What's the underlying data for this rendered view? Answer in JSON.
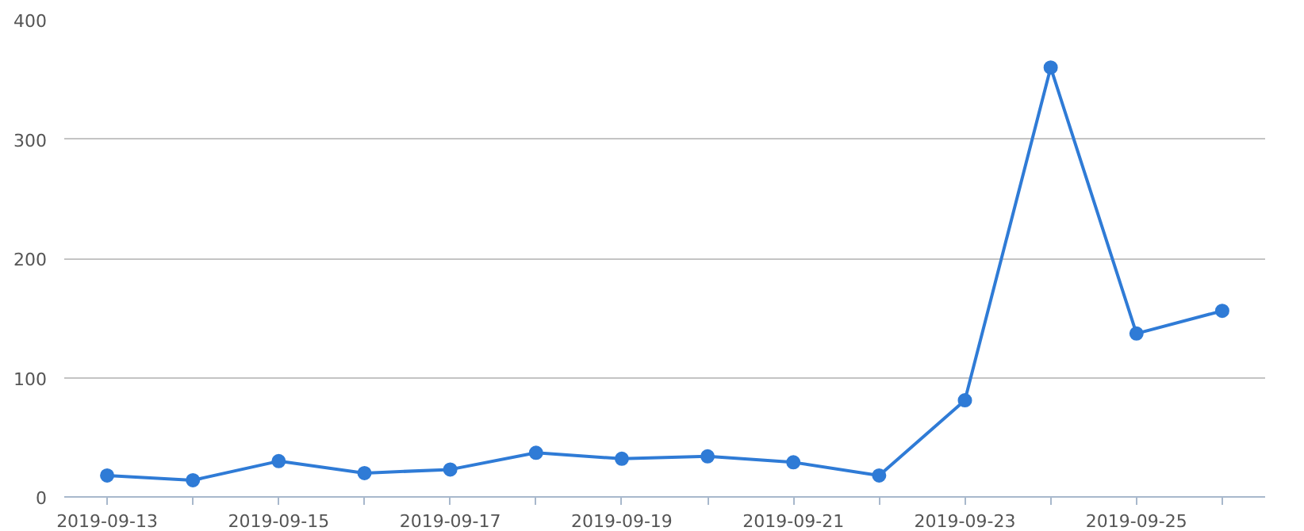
{
  "chart_data": {
    "type": "line",
    "categories": [
      "2019-09-13",
      null,
      "2019-09-15",
      null,
      "2019-09-17",
      null,
      "2019-09-19",
      null,
      "2019-09-21",
      null,
      "2019-09-23",
      null,
      "2019-09-25",
      null
    ],
    "series": [
      {
        "color": "#2f7bd6",
        "values": [
          18,
          14,
          30,
          20,
          23,
          37,
          32,
          34,
          29,
          18,
          81,
          360,
          137,
          156
        ]
      }
    ],
    "ylim": [
      0,
      400
    ],
    "yticks": [
      0,
      100,
      200,
      300,
      400
    ],
    "grid": "y",
    "marker": "circle",
    "line_style": "solid"
  }
}
